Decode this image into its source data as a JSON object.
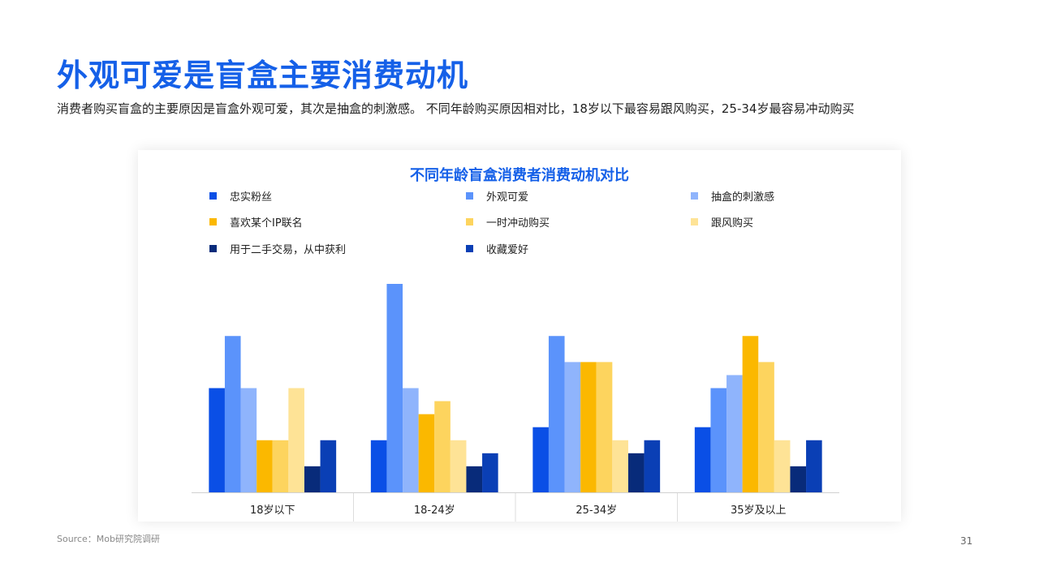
{
  "header": {
    "title": "外观可爱是盲盒主要消费动机",
    "subtitle": "消费者购买盲盒的主要原因是盲盒外观可爱，其次是抽盒的刺激感。 不同年龄购买原因相对比，18岁以下最容易跟风购买，25-34岁最容易冲动购买"
  },
  "chart_data": {
    "type": "bar",
    "title": "不同年龄盲盒消费者消费动机对比",
    "categories": [
      "18岁以下",
      "18-24岁",
      "25-34岁",
      "35岁及以上"
    ],
    "series": [
      {
        "name": "忠实粉丝",
        "color": "#0a4fe6",
        "values": [
          8,
          4,
          5,
          5
        ]
      },
      {
        "name": "外观可爱",
        "color": "#5b93fb",
        "values": [
          12,
          16,
          12,
          8
        ]
      },
      {
        "name": "抽盒的刺激感",
        "color": "#8fb4fc",
        "values": [
          8,
          8,
          10,
          9
        ]
      },
      {
        "name": "喜欢某个IP联名",
        "color": "#fbb800",
        "values": [
          4,
          6,
          10,
          12
        ]
      },
      {
        "name": "一时冲动购买",
        "color": "#fdd45e",
        "values": [
          4,
          7,
          10,
          10
        ]
      },
      {
        "name": "跟风购买",
        "color": "#fee396",
        "values": [
          8,
          4,
          4,
          4
        ]
      },
      {
        "name": "用于二手交易，从中获利",
        "color": "#082b7a",
        "values": [
          2,
          2,
          3,
          2
        ]
      },
      {
        "name": "收藏爱好",
        "color": "#0a3fb5",
        "values": [
          4,
          3,
          4,
          4
        ]
      }
    ],
    "ylim": [
      0,
      16
    ],
    "legend_position": "top",
    "grid": false
  },
  "footer": {
    "source": "Source：Mob研究院调研",
    "page_number": "31"
  }
}
